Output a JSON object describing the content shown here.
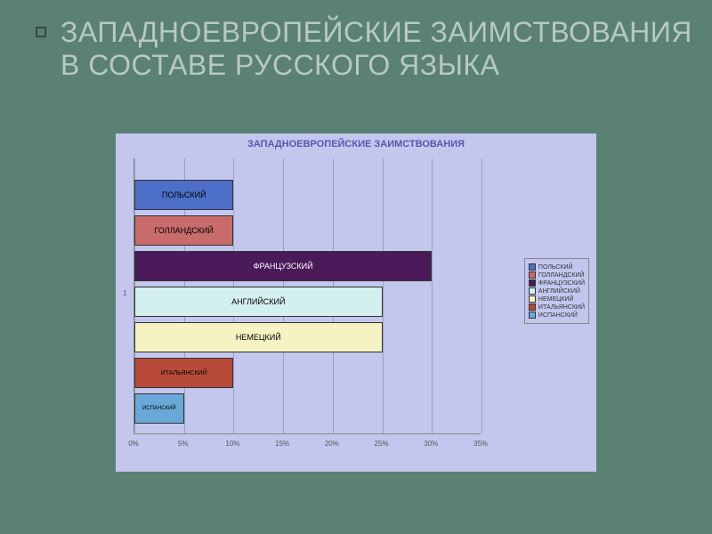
{
  "slide": {
    "title": "ЗАПАДНОЕВРОПЕЙСКИЕ ЗАИМСТВОВАНИЯ В СОСТАВЕ РУССКОГО ЯЗЫКА",
    "background_color": "#5a8173",
    "title_color": "#b8c9c2",
    "title_fontsize": 32
  },
  "chart": {
    "type": "bar-horizontal",
    "title": "ЗАПАДНОЕВРОПЕЙСКИЕ ЗАИМСТВОВАНИЯ",
    "title_color": "#5458ac",
    "title_fontsize": 11,
    "background_color": "#c3c7ee",
    "grid_color": "#9a9dc8",
    "xlim": [
      0,
      35
    ],
    "xtick_step": 5,
    "xticks": [
      "0%",
      "5%",
      "10%",
      "15%",
      "20%",
      "25%",
      "30%",
      "35%"
    ],
    "y_axis_label": "1",
    "bar_label_fontsize": 9,
    "legend_fontsize": 7,
    "bars": [
      {
        "label": "ПОЛЬСКИЙ",
        "value": 10,
        "color": "#4d6fc8"
      },
      {
        "label": "ГОЛЛАНДСКИЙ",
        "value": 10,
        "color": "#c86b6b"
      },
      {
        "label": "ФРАНЦУЗСКИЙ",
        "value": 30,
        "color": "#4a1a5a",
        "label_color": "#ffffff"
      },
      {
        "label": "АНГЛИЙСКИЙ",
        "value": 25,
        "color": "#d4f0ee"
      },
      {
        "label": "НЕМЕЦКИЙ",
        "value": 25,
        "color": "#f5f3c4"
      },
      {
        "label": "ИТАЛЬЯНСКИЙ",
        "value": 10,
        "color": "#b84a3a",
        "label_fontsize": 7
      },
      {
        "label": "ИСПАНСКИЙ",
        "value": 5,
        "color": "#6aa8d8",
        "label_fontsize": 6
      }
    ],
    "legend": [
      {
        "label": "ПОЛЬСКИЙ",
        "color": "#4d6fc8"
      },
      {
        "label": "ГОЛЛАНДСКИЙ",
        "color": "#c86b6b"
      },
      {
        "label": "ФРАНЦУЗСКИЙ",
        "color": "#4a1a5a"
      },
      {
        "label": "АНГЛИЙСКИЙ",
        "color": "#d4f0ee"
      },
      {
        "label": "НЕМЕЦКИЙ",
        "color": "#f5f3c4"
      },
      {
        "label": "ИТАЛЬЯНСКИЙ",
        "color": "#b84a3a"
      },
      {
        "label": "ИСПАНСКИЙ",
        "color": "#6aa8d8"
      }
    ]
  }
}
